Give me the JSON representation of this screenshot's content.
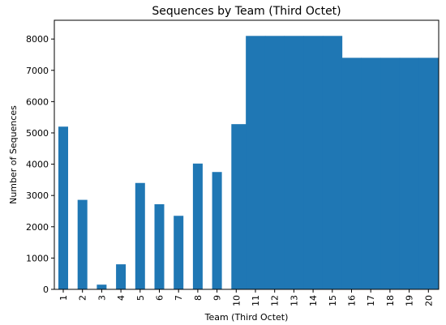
{
  "chart_data": {
    "type": "bar",
    "title": "Sequences by Team (Third Octet)",
    "xlabel": "Team (Third Octet)",
    "ylabel": "Number of Sequences",
    "categories": [
      "1",
      "2",
      "3",
      "4",
      "5",
      "6",
      "7",
      "8",
      "9",
      "10",
      "11",
      "12",
      "13",
      "14",
      "15",
      "16",
      "17",
      "18",
      "19",
      "20"
    ],
    "values": [
      5200,
      2860,
      150,
      800,
      3400,
      2720,
      2350,
      4020,
      3750,
      5280,
      8100,
      8100,
      8100,
      8100,
      8100,
      7400,
      7400,
      7400,
      7400,
      7400
    ],
    "yticks": [
      0,
      1000,
      2000,
      3000,
      4000,
      5000,
      6000,
      7000,
      8000
    ],
    "ylim": [
      0,
      8600
    ],
    "grid": false,
    "bar_color": "#1f77b4"
  }
}
